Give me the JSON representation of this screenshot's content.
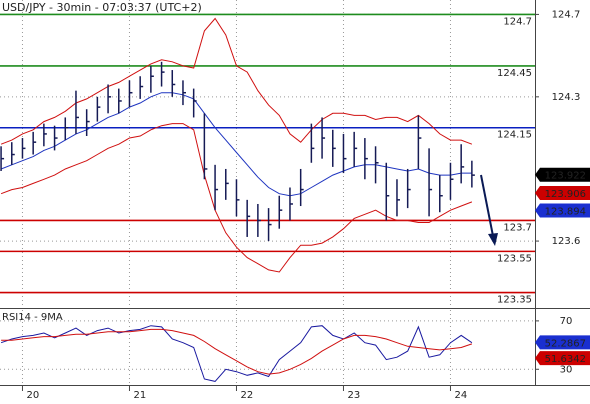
{
  "chart_data": [
    {
      "type": "hlc",
      "title": "USD/JPY - 30min - 07:03:37 (UTC+2)",
      "x": [
        19.8,
        19.9,
        20.0,
        20.1,
        20.2,
        20.3,
        20.4,
        20.5,
        20.6,
        20.7,
        20.8,
        20.9,
        21.0,
        21.1,
        21.2,
        21.3,
        21.4,
        21.5,
        21.6,
        21.7,
        21.8,
        21.9,
        22.0,
        22.1,
        22.2,
        22.3,
        22.4,
        22.5,
        22.6,
        22.7,
        22.8,
        22.9,
        23.0,
        23.1,
        23.2,
        23.3,
        23.4,
        23.5,
        23.6,
        23.7,
        23.8,
        23.9,
        24.0,
        24.1,
        24.2
      ],
      "high": [
        124.06,
        124.08,
        124.1,
        124.13,
        124.17,
        124.16,
        124.2,
        124.33,
        124.24,
        124.3,
        124.36,
        124.34,
        124.38,
        124.4,
        124.45,
        124.47,
        124.43,
        124.38,
        124.34,
        124.22,
        123.97,
        123.95,
        123.9,
        123.8,
        123.78,
        123.76,
        123.82,
        123.86,
        123.95,
        124.17,
        124.2,
        124.14,
        124.12,
        124.13,
        124.1,
        124.06,
        123.98,
        123.9,
        123.95,
        124.21,
        124.05,
        123.92,
        123.98,
        124.07,
        123.99
      ],
      "low": [
        123.94,
        123.97,
        124.0,
        124.02,
        124.06,
        124.04,
        124.09,
        124.12,
        124.11,
        124.18,
        124.22,
        124.22,
        124.25,
        124.29,
        124.32,
        124.35,
        124.3,
        124.26,
        124.2,
        123.9,
        123.75,
        123.8,
        123.72,
        123.62,
        123.62,
        123.6,
        123.66,
        123.7,
        123.77,
        123.98,
        124.0,
        123.96,
        123.93,
        123.96,
        123.9,
        123.88,
        123.7,
        123.72,
        123.76,
        123.95,
        123.72,
        123.74,
        123.8,
        123.88,
        123.86
      ],
      "close": [
        124.0,
        124.02,
        124.05,
        124.08,
        124.12,
        124.1,
        124.15,
        124.2,
        124.18,
        124.25,
        124.3,
        124.28,
        124.32,
        124.35,
        124.4,
        124.42,
        124.36,
        124.32,
        124.28,
        123.95,
        123.85,
        123.88,
        123.8,
        123.72,
        123.7,
        123.68,
        123.75,
        123.78,
        123.85,
        124.05,
        124.1,
        124.05,
        124.0,
        124.05,
        124.0,
        123.98,
        123.82,
        123.8,
        123.85,
        124.1,
        123.85,
        123.82,
        123.9,
        123.96,
        123.92
      ],
      "color": "#151a55",
      "bands": [
        {
          "color": "#d01010",
          "values": [
            124.07,
            124.09,
            124.12,
            124.14,
            124.18,
            124.2,
            124.23,
            124.27,
            124.29,
            124.32,
            124.35,
            124.37,
            124.4,
            124.43,
            124.46,
            124.48,
            124.47,
            124.45,
            124.44,
            124.62,
            124.68,
            124.6,
            124.45,
            124.42,
            124.33,
            124.26,
            124.21,
            124.12,
            124.08,
            124.14,
            124.19,
            124.22,
            124.22,
            124.21,
            124.21,
            124.19,
            124.2,
            124.2,
            124.18,
            124.21,
            124.17,
            124.12,
            124.09,
            124.09,
            124.07
          ]
        },
        {
          "color": "#1f35c0",
          "values": [
            123.95,
            123.97,
            123.99,
            124.01,
            124.04,
            124.06,
            124.09,
            124.12,
            124.14,
            124.17,
            124.2,
            124.22,
            124.25,
            124.27,
            124.3,
            124.32,
            124.32,
            124.31,
            124.29,
            124.22,
            124.15,
            124.09,
            124.03,
            123.97,
            123.91,
            123.86,
            123.83,
            123.82,
            123.83,
            123.86,
            123.89,
            123.92,
            123.94,
            123.96,
            123.97,
            123.97,
            123.96,
            123.95,
            123.94,
            123.95,
            123.93,
            123.92,
            123.92,
            123.93,
            123.93
          ]
        },
        {
          "color": "#d01010",
          "values": [
            123.83,
            123.85,
            123.86,
            123.88,
            123.9,
            123.92,
            123.95,
            123.97,
            123.99,
            124.02,
            124.05,
            124.07,
            124.1,
            124.11,
            124.14,
            124.16,
            124.17,
            124.17,
            124.14,
            123.92,
            123.75,
            123.64,
            123.57,
            123.52,
            123.49,
            123.46,
            123.45,
            123.52,
            123.58,
            123.58,
            123.59,
            123.62,
            123.66,
            123.71,
            123.73,
            123.75,
            123.72,
            123.7,
            123.7,
            123.69,
            123.69,
            123.72,
            123.75,
            123.77,
            123.79
          ]
        }
      ],
      "levels": [
        {
          "value": 124.7,
          "color": "#1e8c1e"
        },
        {
          "value": 124.45,
          "color": "#1e8c1e"
        },
        {
          "value": 124.15,
          "color": "#0a1fc0"
        },
        {
          "value": 123.7,
          "color": "#cc0000"
        },
        {
          "value": 123.55,
          "color": "#cc0000"
        },
        {
          "value": 123.35,
          "color": "#cc0000"
        }
      ],
      "price_tags": [
        {
          "value": 123.922,
          "color": "#000000"
        },
        {
          "value": 123.906,
          "color": "#cc0000"
        },
        {
          "value": 123.894,
          "color": "#1a2fd0"
        }
      ],
      "xlim": [
        19.79,
        24.79
      ],
      "xticks": [
        20,
        21,
        22,
        23,
        24
      ],
      "ylim": [
        123.28,
        124.77
      ],
      "yticks": [
        123.6,
        124.3,
        124.7
      ],
      "grid": true
    },
    {
      "type": "line",
      "title": "RSI14 - 9MA",
      "series": [
        {
          "color": "#1a1aa0",
          "values": [
            52,
            55,
            57,
            58,
            60,
            56,
            60,
            64,
            58,
            62,
            64,
            60,
            62,
            63,
            66,
            65,
            55,
            52,
            48,
            22,
            20,
            30,
            28,
            25,
            27,
            24,
            38,
            45,
            52,
            65,
            66,
            58,
            55,
            60,
            52,
            50,
            38,
            40,
            45,
            65,
            40,
            42,
            52,
            58,
            52
          ]
        },
        {
          "color": "#d01010",
          "values": [
            54,
            54,
            55,
            56,
            57,
            57,
            58,
            59,
            59,
            60,
            61,
            61,
            61,
            62,
            63,
            63,
            62,
            60,
            58,
            53,
            47,
            42,
            37,
            32,
            28,
            26,
            27,
            30,
            34,
            39,
            45,
            50,
            55,
            58,
            58,
            57,
            55,
            52,
            49,
            48,
            47,
            46,
            47,
            48,
            51
          ]
        }
      ],
      "value_tags": [
        {
          "value": 52.2867,
          "color": "#1a2fd0"
        },
        {
          "value": 51.6342,
          "color": "#cc0000"
        }
      ],
      "ylim": [
        17,
        79
      ],
      "yticks": [
        30,
        70
      ],
      "grid": true
    }
  ]
}
